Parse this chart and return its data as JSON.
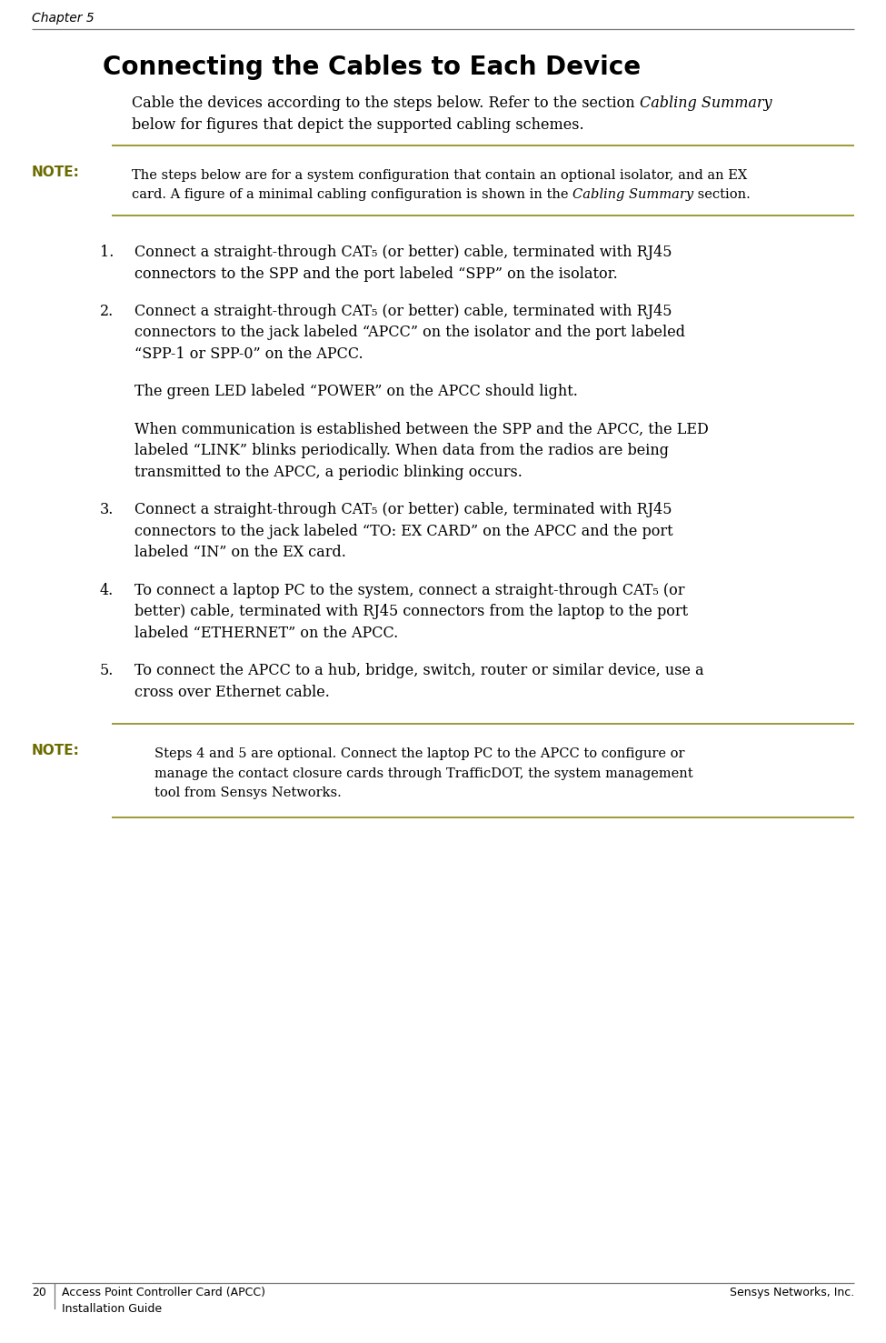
{
  "page_width": 9.75,
  "page_height": 14.77,
  "bg_color": "#ffffff",
  "chapter_label": "Chapter 5",
  "title": "Connecting the Cables to Each Device",
  "note_label": "NOTE:",
  "note_color": "#6b6b00",
  "steps": [
    {
      "num": "1.",
      "lines": [
        "Connect a straight-through CAT₅ (or better) cable, terminated with RJ45",
        "connectors to the SPP and the port labeled “SPP” on the isolator."
      ]
    },
    {
      "num": "2.",
      "lines": [
        "Connect a straight-through CAT₅ (or better) cable, terminated with RJ45",
        "connectors to the jack labeled “APCC” on the isolator and the port labeled",
        "“SPP-1 or SPP-0” on the APCC."
      ]
    },
    {
      "num": "",
      "lines": [
        "The green LED labeled “POWER” on the APCC should light."
      ]
    },
    {
      "num": "",
      "lines": [
        "When communication is established between the SPP and the APCC, the LED",
        "labeled “LINK” blinks periodically. When data from the radios are being",
        "transmitted to the APCC, a periodic blinking occurs."
      ]
    },
    {
      "num": "3.",
      "lines": [
        "Connect a straight-through CAT₅ (or better) cable, terminated with RJ45",
        "connectors to the jack labeled “TO: EX CARD” on the APCC and the port",
        "labeled “IN” on the EX card."
      ]
    },
    {
      "num": "4.",
      "lines": [
        "To connect a laptop PC to the system, connect a straight-through CAT₅ (or",
        "better) cable, terminated with RJ45 connectors from the laptop to the port",
        "labeled “ETHERNET” on the APCC."
      ]
    },
    {
      "num": "5.",
      "lines": [
        "To connect the APCC to a hub, bridge, switch, router or similar device, use a",
        "cross over Ethernet cable."
      ]
    }
  ],
  "note2_lines": [
    "Steps 4 and 5 are optional. Connect the laptop PC to the APCC to configure or",
    "manage the contact closure cards through TrafficDOT, the system management",
    "tool from Sensys Networks."
  ],
  "footer_page": "20",
  "footer_left1": "Access Point Controller Card (APCC)",
  "footer_left2": "Installation Guide",
  "footer_right": "Sensys Networks, Inc.",
  "olive_color": "#808000",
  "gray_color": "#777777",
  "black": "#000000",
  "body_fs": 11.5,
  "title_fs": 20,
  "chapter_fs": 10,
  "footer_fs": 9,
  "note_label_fs": 11,
  "note_body_fs": 10.5
}
